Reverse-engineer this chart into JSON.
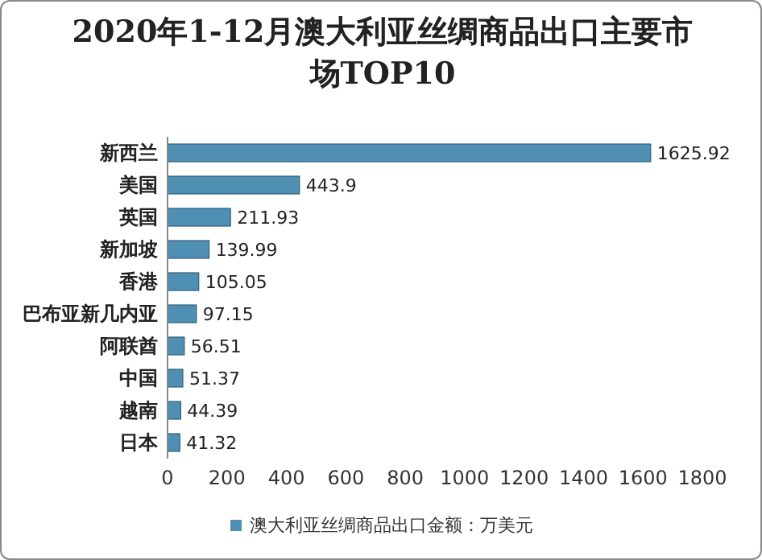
{
  "chart_data": {
    "type": "bar",
    "orientation": "horizontal",
    "title": "2020年1-12月澳大利亚丝绸商品出口主要市场TOP10",
    "categories": [
      "新西兰",
      "美国",
      "英国",
      "新加坡",
      "香港",
      "巴布亚新几内亚",
      "阿联酋",
      "中国",
      "越南",
      "日本"
    ],
    "series": [
      {
        "name": "澳大利亚丝绸商品出口金额：万美元",
        "color": "#4f8fb3",
        "values": [
          1625.92,
          443.9,
          211.93,
          139.99,
          105.05,
          97.15,
          56.51,
          51.37,
          44.39,
          41.32
        ]
      }
    ],
    "xlim": [
      0,
      1800
    ],
    "xticks": [
      0,
      200,
      400,
      600,
      800,
      1000,
      1200,
      1400,
      1600,
      1800
    ],
    "data_labels": true,
    "legend": "bottom",
    "grid": false
  }
}
